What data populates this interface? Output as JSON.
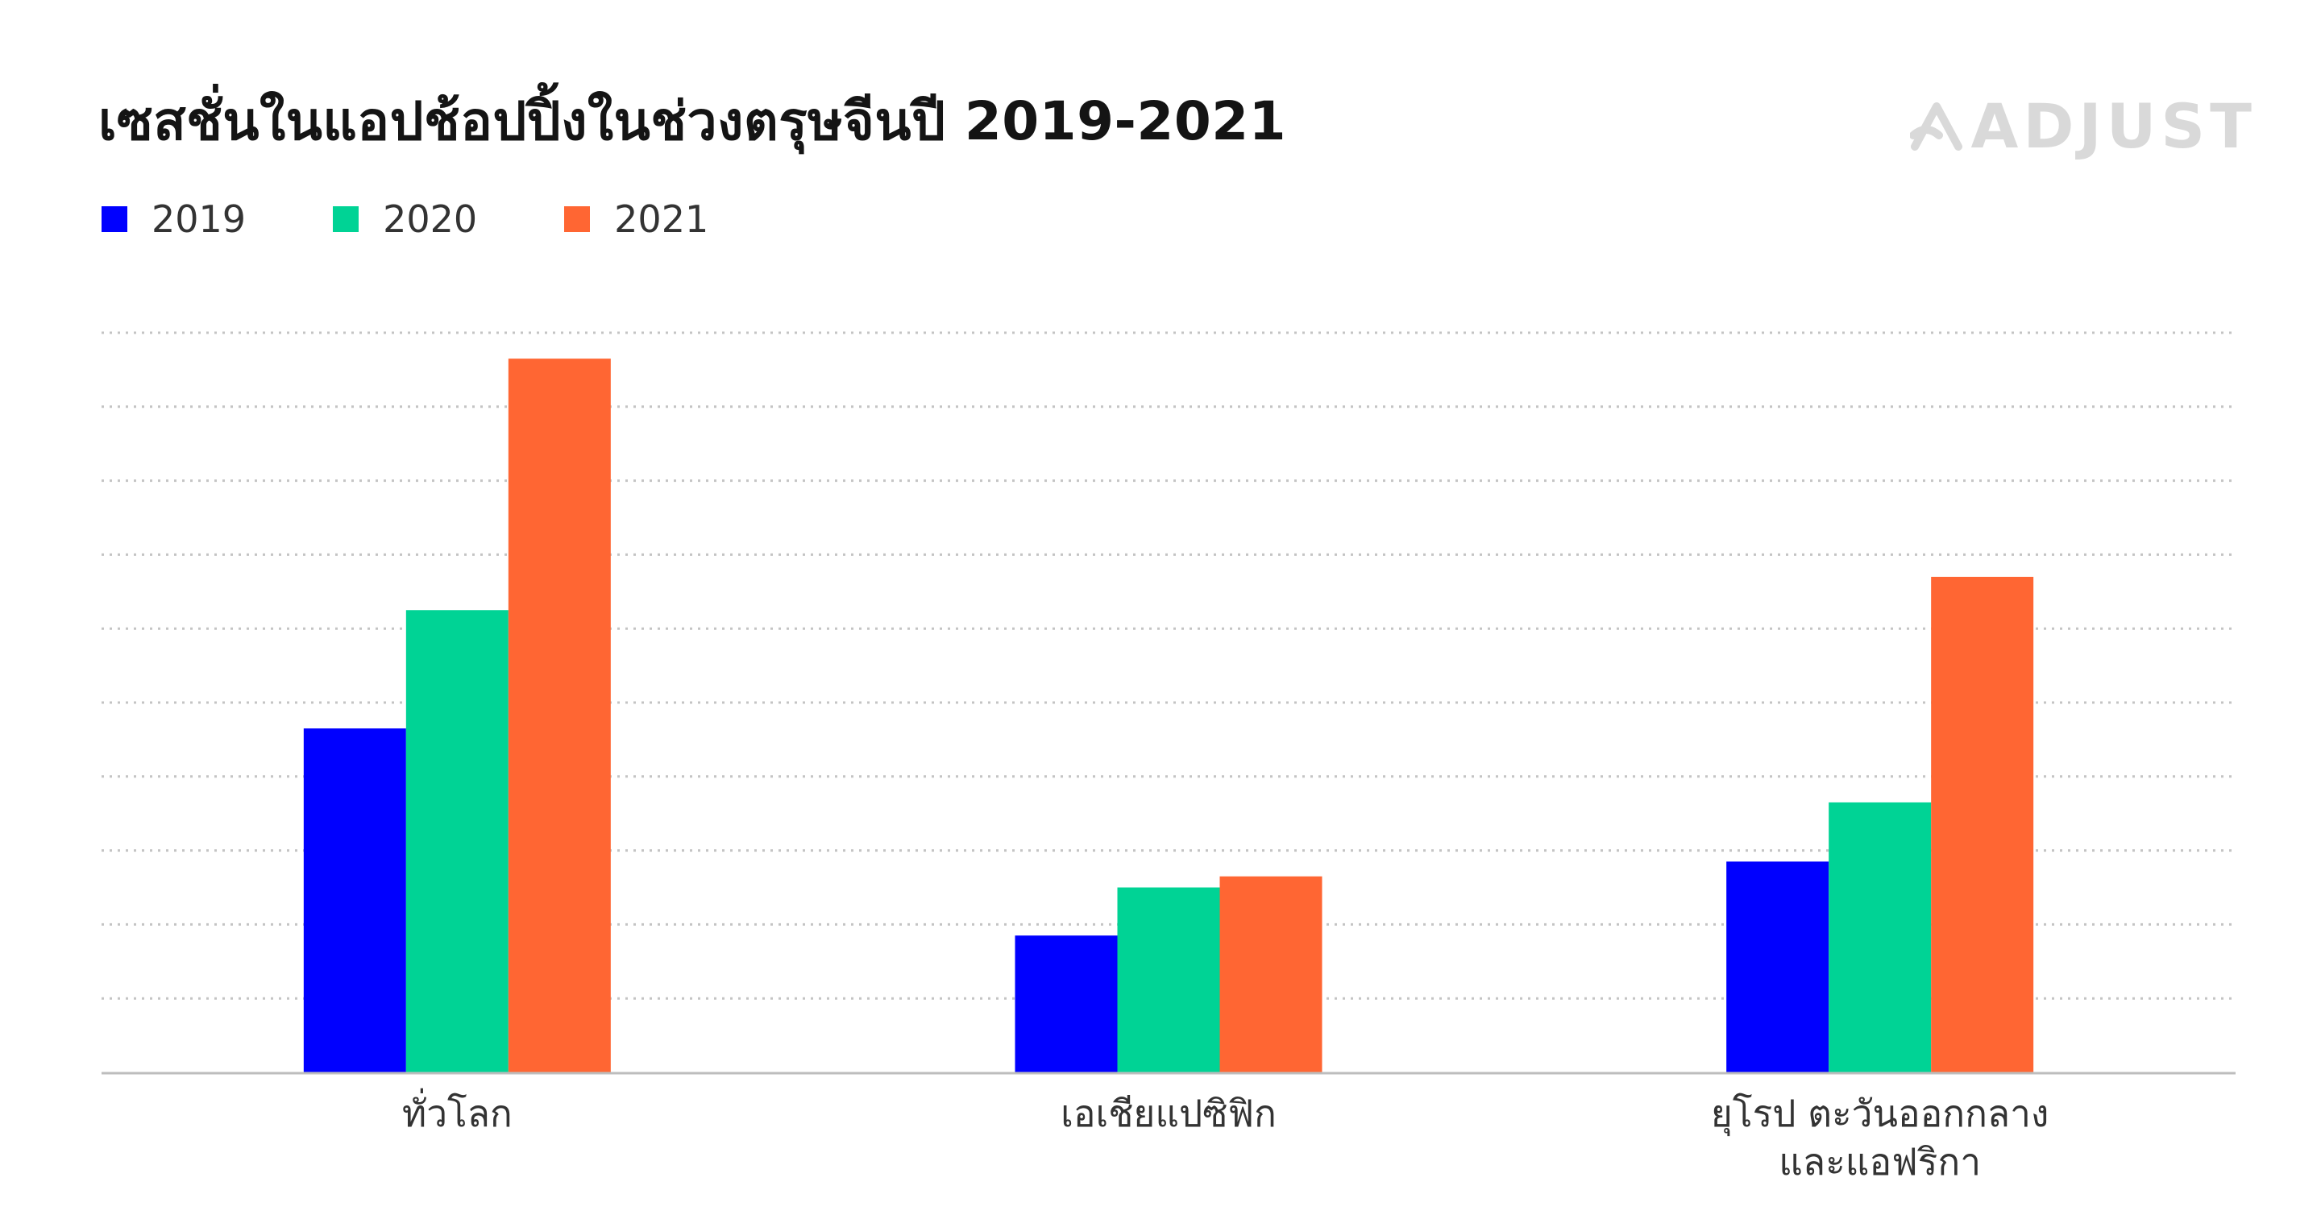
{
  "title": "เซสชั่นในแอปช้อปปิ้งในช่วงตรุษจีนปี 2019-2021",
  "logo": {
    "text": "ADJUST",
    "icon": "adjust-logo-icon",
    "color": "#d9d9d9"
  },
  "chart_data": {
    "type": "bar",
    "title": "เซสชั่นในแอปช้อปปิ้งในช่วงตรุษจีนปี 2019-2021",
    "categories": [
      [
        "ทั่วโลก"
      ],
      [
        "เอเชียแปซิฟิก"
      ],
      [
        "ยุโรป ตะวันออกกลาง",
        "และแอฟริกา"
      ]
    ],
    "series": [
      {
        "name": "2019",
        "color": "#0000ff",
        "values": [
          4.65,
          1.85,
          2.85
        ]
      },
      {
        "name": "2020",
        "color": "#00d395",
        "values": [
          6.25,
          2.5,
          3.65
        ]
      },
      {
        "name": "2021",
        "color": "#ff6633",
        "values": [
          9.65,
          2.65,
          6.7
        ]
      }
    ],
    "ylim": [
      0,
      10
    ],
    "y_ticks_labeled": false,
    "grid": "horizontal-dotted",
    "legend_placement": "top-left"
  }
}
